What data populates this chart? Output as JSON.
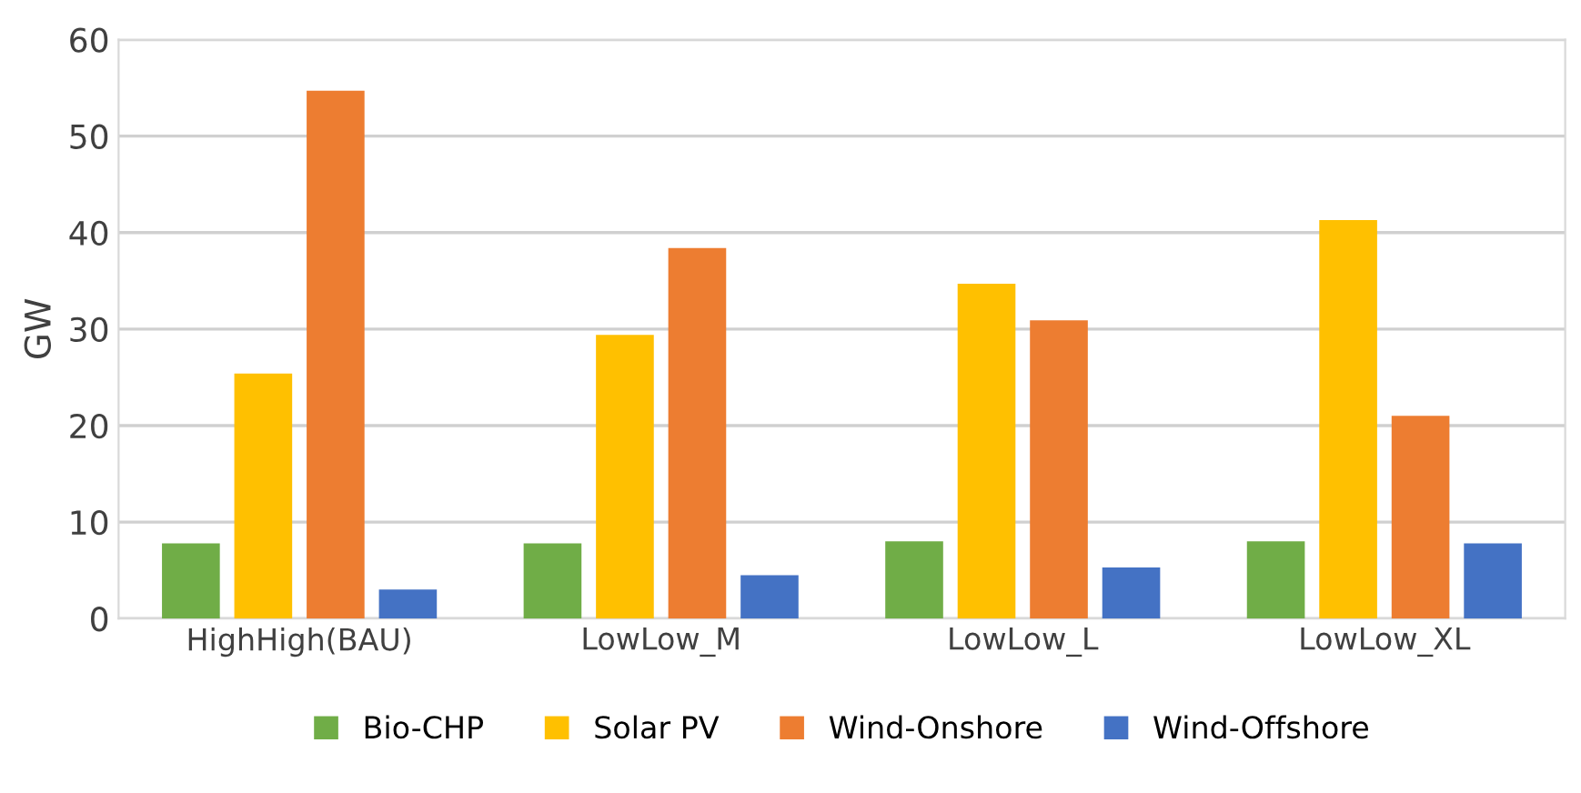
{
  "chart_data": {
    "type": "bar",
    "ylabel": "GW",
    "categories": [
      "HighHigh(BAU)",
      "LowLow_M",
      "LowLow_L",
      "LowLow_XL"
    ],
    "series": [
      {
        "name": "Bio-CHP",
        "color": "#70ad47",
        "values": [
          7.8,
          7.8,
          8.0,
          8.0
        ]
      },
      {
        "name": "Solar PV",
        "color": "#ffc000",
        "values": [
          25.4,
          29.4,
          34.7,
          41.3
        ]
      },
      {
        "name": "Wind-Onshore",
        "color": "#ed7d31",
        "values": [
          54.7,
          38.4,
          30.9,
          21.0
        ]
      },
      {
        "name": "Wind-Offshore",
        "color": "#4472c4",
        "values": [
          3.0,
          4.5,
          5.3,
          7.8
        ]
      }
    ],
    "ylim": [
      0,
      60
    ],
    "yticks": [
      0,
      10,
      20,
      30,
      40,
      50,
      60
    ],
    "grid": "y",
    "legend": "bottom"
  }
}
